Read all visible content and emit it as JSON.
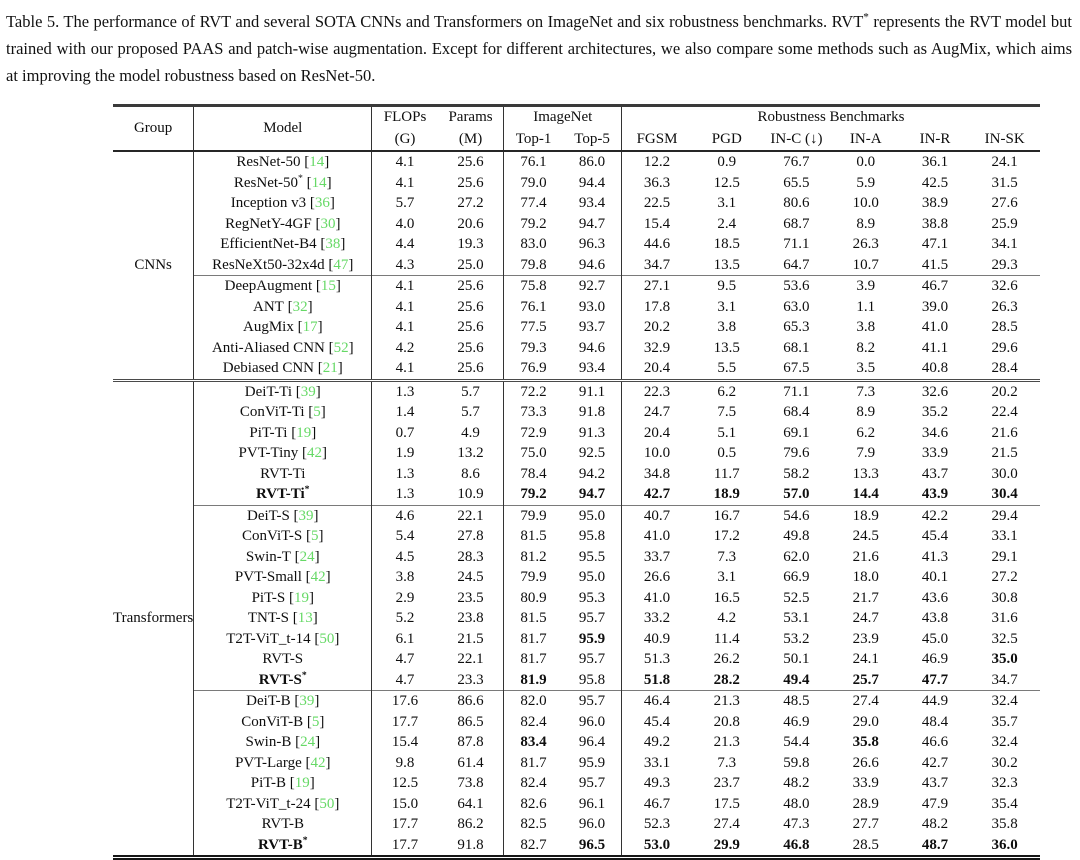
{
  "caption": {
    "part1": "Table 5.  The performance of RVT and several SOTA CNNs and Transformers on ImageNet and six robustness benchmarks.  RVT",
    "star": "*",
    "part2": " represents the RVT model but trained with our proposed PAAS and patch-wise augmentation. Except for different architectures, we also compare some methods such as AugMix, which aims at improving the model robustness based on ResNet-50."
  },
  "table": {
    "header": {
      "group": "Group",
      "model": "Model",
      "flops_line1": "FLOPs",
      "flops_line2": "(G)",
      "params_line1": "Params",
      "params_line2": "(M)",
      "imagenet": "ImageNet",
      "top1": "Top-1",
      "top5": "Top-5",
      "robustness": "Robustness Benchmarks",
      "bench_cols": [
        "FGSM",
        "PGD",
        "IN-C (↓)",
        "IN-A",
        "IN-R",
        "IN-SK"
      ]
    },
    "groups": [
      {
        "label": "CNNs",
        "blocks": [
          {
            "rows": [
              {
                "model": "ResNet-50",
                "star": "",
                "cite": "14",
                "bold_model": false,
                "bold": [],
                "values": [
                  "4.1",
                  "25.6",
                  "76.1",
                  "86.0",
                  "12.2",
                  "0.9",
                  "76.7",
                  "0.0",
                  "36.1",
                  "24.1"
                ]
              },
              {
                "model": "ResNet-50",
                "star": "*",
                "cite": "14",
                "bold_model": false,
                "bold": [],
                "values": [
                  "4.1",
                  "25.6",
                  "79.0",
                  "94.4",
                  "36.3",
                  "12.5",
                  "65.5",
                  "5.9",
                  "42.5",
                  "31.5"
                ]
              },
              {
                "model": "Inception v3",
                "star": "",
                "cite": "36",
                "bold_model": false,
                "bold": [],
                "values": [
                  "5.7",
                  "27.2",
                  "77.4",
                  "93.4",
                  "22.5",
                  "3.1",
                  "80.6",
                  "10.0",
                  "38.9",
                  "27.6"
                ]
              },
              {
                "model": "RegNetY-4GF",
                "star": "",
                "cite": "30",
                "bold_model": false,
                "bold": [],
                "values": [
                  "4.0",
                  "20.6",
                  "79.2",
                  "94.7",
                  "15.4",
                  "2.4",
                  "68.7",
                  "8.9",
                  "38.8",
                  "25.9"
                ]
              },
              {
                "model": "EfficientNet-B4",
                "star": "",
                "cite": "38",
                "bold_model": false,
                "bold": [],
                "values": [
                  "4.4",
                  "19.3",
                  "83.0",
                  "96.3",
                  "44.6",
                  "18.5",
                  "71.1",
                  "26.3",
                  "47.1",
                  "34.1"
                ]
              },
              {
                "model": "ResNeXt50-32x4d",
                "star": "",
                "cite": "47",
                "bold_model": false,
                "bold": [],
                "values": [
                  "4.3",
                  "25.0",
                  "79.8",
                  "94.6",
                  "34.7",
                  "13.5",
                  "64.7",
                  "10.7",
                  "41.5",
                  "29.3"
                ]
              }
            ]
          },
          {
            "rows": [
              {
                "model": "DeepAugment",
                "star": "",
                "cite": "15",
                "bold_model": false,
                "bold": [],
                "values": [
                  "4.1",
                  "25.6",
                  "75.8",
                  "92.7",
                  "27.1",
                  "9.5",
                  "53.6",
                  "3.9",
                  "46.7",
                  "32.6"
                ]
              },
              {
                "model": "ANT",
                "star": "",
                "cite": "32",
                "bold_model": false,
                "bold": [],
                "values": [
                  "4.1",
                  "25.6",
                  "76.1",
                  "93.0",
                  "17.8",
                  "3.1",
                  "63.0",
                  "1.1",
                  "39.0",
                  "26.3"
                ]
              },
              {
                "model": "AugMix",
                "star": "",
                "cite": "17",
                "bold_model": false,
                "bold": [],
                "values": [
                  "4.1",
                  "25.6",
                  "77.5",
                  "93.7",
                  "20.2",
                  "3.8",
                  "65.3",
                  "3.8",
                  "41.0",
                  "28.5"
                ]
              },
              {
                "model": "Anti-Aliased CNN",
                "star": "",
                "cite": "52",
                "bold_model": false,
                "bold": [],
                "values": [
                  "4.2",
                  "25.6",
                  "79.3",
                  "94.6",
                  "32.9",
                  "13.5",
                  "68.1",
                  "8.2",
                  "41.1",
                  "29.6"
                ]
              },
              {
                "model": "Debiased CNN",
                "star": "",
                "cite": "21",
                "bold_model": false,
                "bold": [],
                "values": [
                  "4.1",
                  "25.6",
                  "76.9",
                  "93.4",
                  "20.4",
                  "5.5",
                  "67.5",
                  "3.5",
                  "40.8",
                  "28.4"
                ]
              }
            ]
          }
        ]
      },
      {
        "label": "Transformers",
        "blocks": [
          {
            "rows": [
              {
                "model": "DeiT-Ti",
                "star": "",
                "cite": "39",
                "bold_model": false,
                "bold": [],
                "values": [
                  "1.3",
                  "5.7",
                  "72.2",
                  "91.1",
                  "22.3",
                  "6.2",
                  "71.1",
                  "7.3",
                  "32.6",
                  "20.2"
                ]
              },
              {
                "model": "ConViT-Ti",
                "star": "",
                "cite": "5",
                "bold_model": false,
                "bold": [],
                "values": [
                  "1.4",
                  "5.7",
                  "73.3",
                  "91.8",
                  "24.7",
                  "7.5",
                  "68.4",
                  "8.9",
                  "35.2",
                  "22.4"
                ]
              },
              {
                "model": "PiT-Ti",
                "star": "",
                "cite": "19",
                "bold_model": false,
                "bold": [],
                "values": [
                  "0.7",
                  "4.9",
                  "72.9",
                  "91.3",
                  "20.4",
                  "5.1",
                  "69.1",
                  "6.2",
                  "34.6",
                  "21.6"
                ]
              },
              {
                "model": "PVT-Tiny",
                "star": "",
                "cite": "42",
                "bold_model": false,
                "bold": [],
                "values": [
                  "1.9",
                  "13.2",
                  "75.0",
                  "92.5",
                  "10.0",
                  "0.5",
                  "79.6",
                  "7.9",
                  "33.9",
                  "21.5"
                ]
              },
              {
                "model": "RVT-Ti",
                "star": "",
                "cite": "",
                "bold_model": false,
                "bold": [],
                "values": [
                  "1.3",
                  "8.6",
                  "78.4",
                  "94.2",
                  "34.8",
                  "11.7",
                  "58.2",
                  "13.3",
                  "43.7",
                  "30.0"
                ]
              },
              {
                "model": "RVT-Ti",
                "star": "*",
                "cite": "",
                "bold_model": true,
                "bold": [
                  2,
                  3,
                  4,
                  5,
                  6,
                  7,
                  8,
                  9
                ],
                "values": [
                  "1.3",
                  "10.9",
                  "79.2",
                  "94.7",
                  "42.7",
                  "18.9",
                  "57.0",
                  "14.4",
                  "43.9",
                  "30.4"
                ]
              }
            ]
          },
          {
            "rows": [
              {
                "model": "DeiT-S",
                "star": "",
                "cite": "39",
                "bold_model": false,
                "bold": [],
                "values": [
                  "4.6",
                  "22.1",
                  "79.9",
                  "95.0",
                  "40.7",
                  "16.7",
                  "54.6",
                  "18.9",
                  "42.2",
                  "29.4"
                ]
              },
              {
                "model": "ConViT-S",
                "star": "",
                "cite": "5",
                "bold_model": false,
                "bold": [],
                "values": [
                  "5.4",
                  "27.8",
                  "81.5",
                  "95.8",
                  "41.0",
                  "17.2",
                  "49.8",
                  "24.5",
                  "45.4",
                  "33.1"
                ]
              },
              {
                "model": "Swin-T",
                "star": "",
                "cite": "24",
                "bold_model": false,
                "bold": [],
                "values": [
                  "4.5",
                  "28.3",
                  "81.2",
                  "95.5",
                  "33.7",
                  "7.3",
                  "62.0",
                  "21.6",
                  "41.3",
                  "29.1"
                ]
              },
              {
                "model": "PVT-Small",
                "star": "",
                "cite": "42",
                "bold_model": false,
                "bold": [],
                "values": [
                  "3.8",
                  "24.5",
                  "79.9",
                  "95.0",
                  "26.6",
                  "3.1",
                  "66.9",
                  "18.0",
                  "40.1",
                  "27.2"
                ]
              },
              {
                "model": "PiT-S",
                "star": "",
                "cite": "19",
                "bold_model": false,
                "bold": [],
                "values": [
                  "2.9",
                  "23.5",
                  "80.9",
                  "95.3",
                  "41.0",
                  "16.5",
                  "52.5",
                  "21.7",
                  "43.6",
                  "30.8"
                ]
              },
              {
                "model": "TNT-S",
                "star": "",
                "cite": "13",
                "bold_model": false,
                "bold": [],
                "values": [
                  "5.2",
                  "23.8",
                  "81.5",
                  "95.7",
                  "33.2",
                  "4.2",
                  "53.1",
                  "24.7",
                  "43.8",
                  "31.6"
                ]
              },
              {
                "model": "T2T-ViT_t-14",
                "star": "",
                "cite": "50",
                "bold_model": false,
                "bold": [
                  3
                ],
                "values": [
                  "6.1",
                  "21.5",
                  "81.7",
                  "95.9",
                  "40.9",
                  "11.4",
                  "53.2",
                  "23.9",
                  "45.0",
                  "32.5"
                ]
              },
              {
                "model": "RVT-S",
                "star": "",
                "cite": "",
                "bold_model": false,
                "bold": [
                  9
                ],
                "values": [
                  "4.7",
                  "22.1",
                  "81.7",
                  "95.7",
                  "51.3",
                  "26.2",
                  "50.1",
                  "24.1",
                  "46.9",
                  "35.0"
                ]
              },
              {
                "model": "RVT-S",
                "star": "*",
                "cite": "",
                "bold_model": true,
                "bold": [
                  2,
                  4,
                  5,
                  6,
                  7,
                  8
                ],
                "values": [
                  "4.7",
                  "23.3",
                  "81.9",
                  "95.8",
                  "51.8",
                  "28.2",
                  "49.4",
                  "25.7",
                  "47.7",
                  "34.7"
                ]
              }
            ]
          },
          {
            "rows": [
              {
                "model": "DeiT-B",
                "star": "",
                "cite": "39",
                "bold_model": false,
                "bold": [],
                "values": [
                  "17.6",
                  "86.6",
                  "82.0",
                  "95.7",
                  "46.4",
                  "21.3",
                  "48.5",
                  "27.4",
                  "44.9",
                  "32.4"
                ]
              },
              {
                "model": "ConViT-B",
                "star": "",
                "cite": "5",
                "bold_model": false,
                "bold": [],
                "values": [
                  "17.7",
                  "86.5",
                  "82.4",
                  "96.0",
                  "45.4",
                  "20.8",
                  "46.9",
                  "29.0",
                  "48.4",
                  "35.7"
                ]
              },
              {
                "model": "Swin-B",
                "star": "",
                "cite": "24",
                "bold_model": false,
                "bold": [
                  2,
                  7
                ],
                "values": [
                  "15.4",
                  "87.8",
                  "83.4",
                  "96.4",
                  "49.2",
                  "21.3",
                  "54.4",
                  "35.8",
                  "46.6",
                  "32.4"
                ]
              },
              {
                "model": "PVT-Large",
                "star": "",
                "cite": "42",
                "bold_model": false,
                "bold": [],
                "values": [
                  "9.8",
                  "61.4",
                  "81.7",
                  "95.9",
                  "33.1",
                  "7.3",
                  "59.8",
                  "26.6",
                  "42.7",
                  "30.2"
                ]
              },
              {
                "model": "PiT-B",
                "star": "",
                "cite": "19",
                "bold_model": false,
                "bold": [],
                "values": [
                  "12.5",
                  "73.8",
                  "82.4",
                  "95.7",
                  "49.3",
                  "23.7",
                  "48.2",
                  "33.9",
                  "43.7",
                  "32.3"
                ]
              },
              {
                "model": "T2T-ViT_t-24",
                "star": "",
                "cite": "50",
                "bold_model": false,
                "bold": [],
                "values": [
                  "15.0",
                  "64.1",
                  "82.6",
                  "96.1",
                  "46.7",
                  "17.5",
                  "48.0",
                  "28.9",
                  "47.9",
                  "35.4"
                ]
              },
              {
                "model": "RVT-B",
                "star": "",
                "cite": "",
                "bold_model": false,
                "bold": [],
                "values": [
                  "17.7",
                  "86.2",
                  "82.5",
                  "96.0",
                  "52.3",
                  "27.4",
                  "47.3",
                  "27.7",
                  "48.2",
                  "35.8"
                ]
              },
              {
                "model": "RVT-B",
                "star": "*",
                "cite": "",
                "bold_model": true,
                "bold": [
                  3,
                  4,
                  5,
                  6,
                  8,
                  9
                ],
                "values": [
                  "17.7",
                  "91.8",
                  "82.7",
                  "96.5",
                  "53.0",
                  "29.9",
                  "46.8",
                  "28.5",
                  "48.7",
                  "36.0"
                ]
              }
            ]
          }
        ]
      }
    ]
  }
}
